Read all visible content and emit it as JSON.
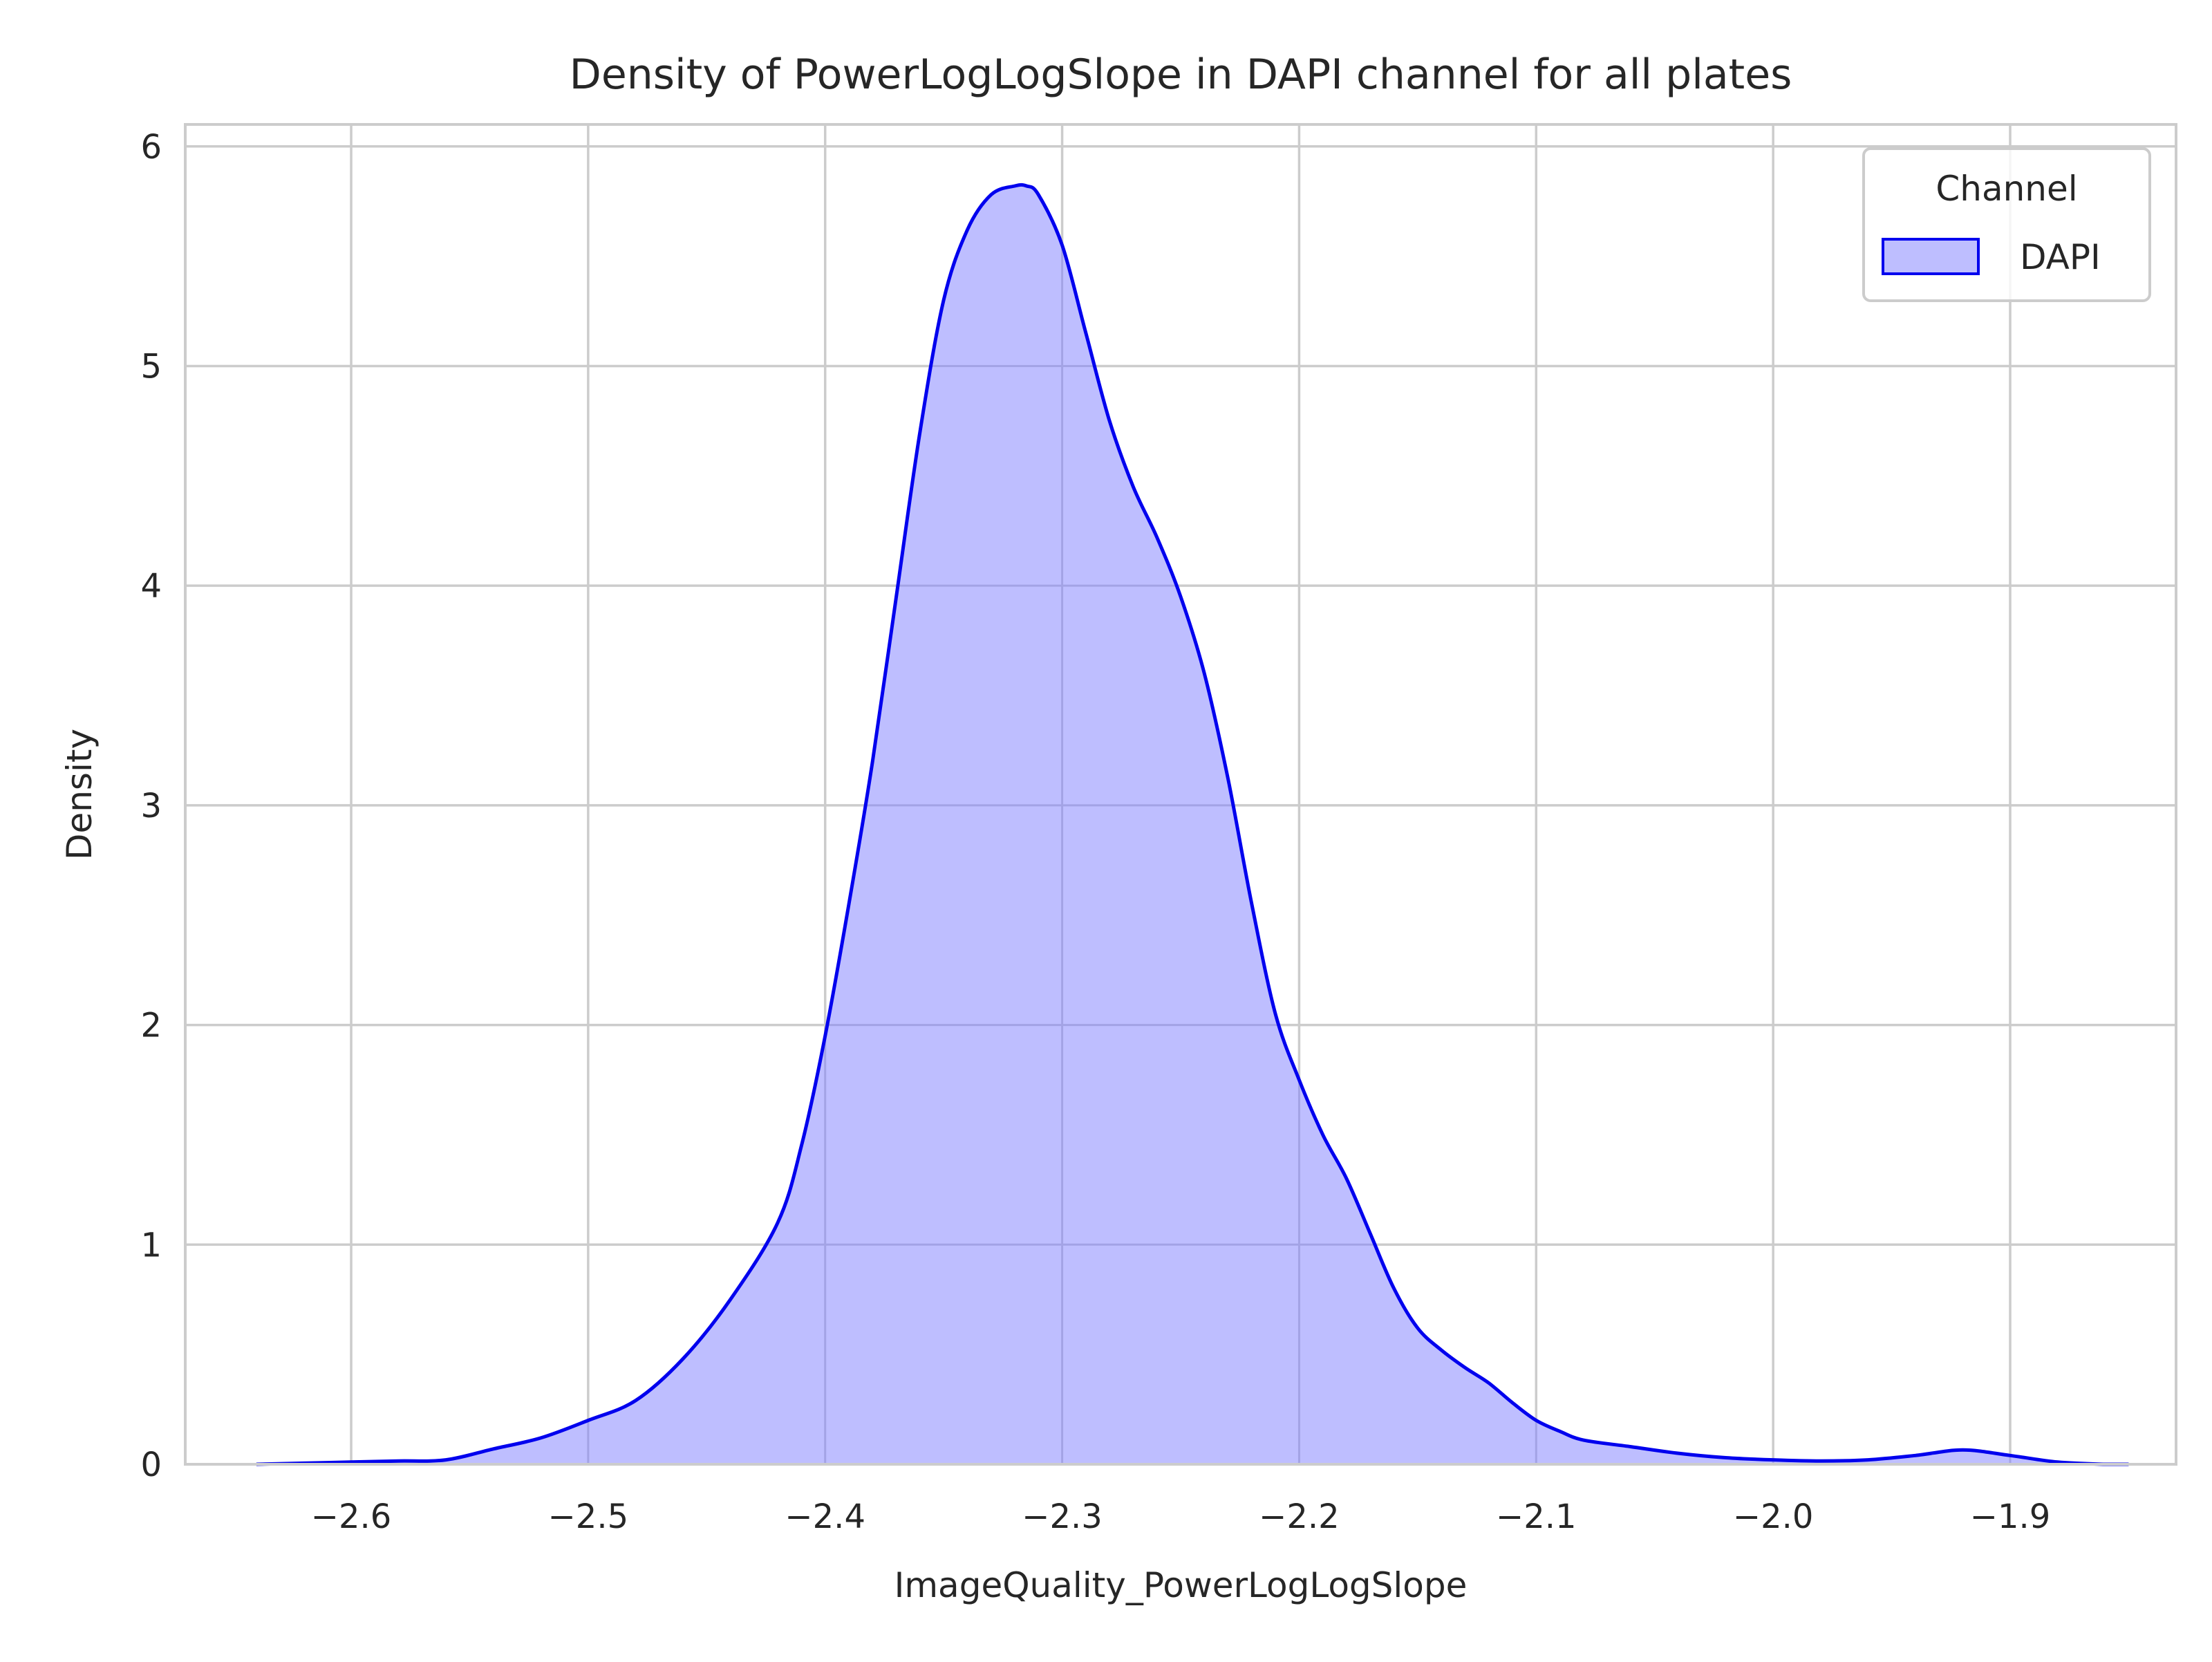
{
  "chart_data": {
    "type": "area",
    "title": "Density of PowerLogLogSlope in DAPI channel for all plates",
    "xlabel": "ImageQuality_PowerLogLogSlope",
    "ylabel": "Density",
    "xlim": [
      -2.67,
      -1.83
    ],
    "ylim": [
      0,
      6.1
    ],
    "xticks": [
      -2.6,
      -2.5,
      -2.4,
      -2.3,
      -2.2,
      -2.1,
      -2.0,
      -1.9
    ],
    "xtick_labels": [
      "−2.6",
      "−2.5",
      "−2.4",
      "−2.3",
      "−2.2",
      "−2.1",
      "−2.0",
      "−1.9"
    ],
    "yticks": [
      0,
      1,
      2,
      3,
      4,
      5,
      6
    ],
    "ytick_labels": [
      "0",
      "1",
      "2",
      "3",
      "4",
      "5",
      "6"
    ],
    "grid": true,
    "legend": {
      "title": "Channel",
      "placement": "top-right",
      "entries": [
        "DAPI"
      ]
    },
    "series": [
      {
        "name": "DAPI",
        "line_color": "#0000ee",
        "fill_color": "#bebeff",
        "x": [
          -2.64,
          -2.62,
          -2.6,
          -2.58,
          -2.56,
          -2.54,
          -2.52,
          -2.5,
          -2.48,
          -2.46,
          -2.44,
          -2.42,
          -2.41,
          -2.4,
          -2.39,
          -2.38,
          -2.37,
          -2.36,
          -2.35,
          -2.34,
          -2.33,
          -2.32,
          -2.315,
          -2.31,
          -2.3,
          -2.29,
          -2.28,
          -2.27,
          -2.26,
          -2.25,
          -2.24,
          -2.23,
          -2.22,
          -2.21,
          -2.2,
          -2.19,
          -2.18,
          -2.17,
          -2.16,
          -2.15,
          -2.14,
          -2.13,
          -2.12,
          -2.11,
          -2.1,
          -2.09,
          -2.08,
          -2.06,
          -2.04,
          -2.02,
          -2.0,
          -1.98,
          -1.96,
          -1.94,
          -1.92,
          -1.9,
          -1.88,
          -1.86,
          -1.85
        ],
        "y": [
          0.0,
          0.005,
          0.01,
          0.015,
          0.02,
          0.07,
          0.12,
          0.2,
          0.29,
          0.48,
          0.75,
          1.1,
          1.45,
          1.95,
          2.55,
          3.2,
          3.95,
          4.7,
          5.3,
          5.62,
          5.78,
          5.82,
          5.82,
          5.78,
          5.55,
          5.15,
          4.75,
          4.45,
          4.22,
          3.95,
          3.6,
          3.12,
          2.55,
          2.05,
          1.75,
          1.5,
          1.3,
          1.05,
          0.8,
          0.62,
          0.52,
          0.44,
          0.37,
          0.28,
          0.2,
          0.15,
          0.11,
          0.08,
          0.05,
          0.03,
          0.02,
          0.015,
          0.02,
          0.04,
          0.065,
          0.04,
          0.01,
          0.0,
          0.0
        ]
      }
    ]
  }
}
